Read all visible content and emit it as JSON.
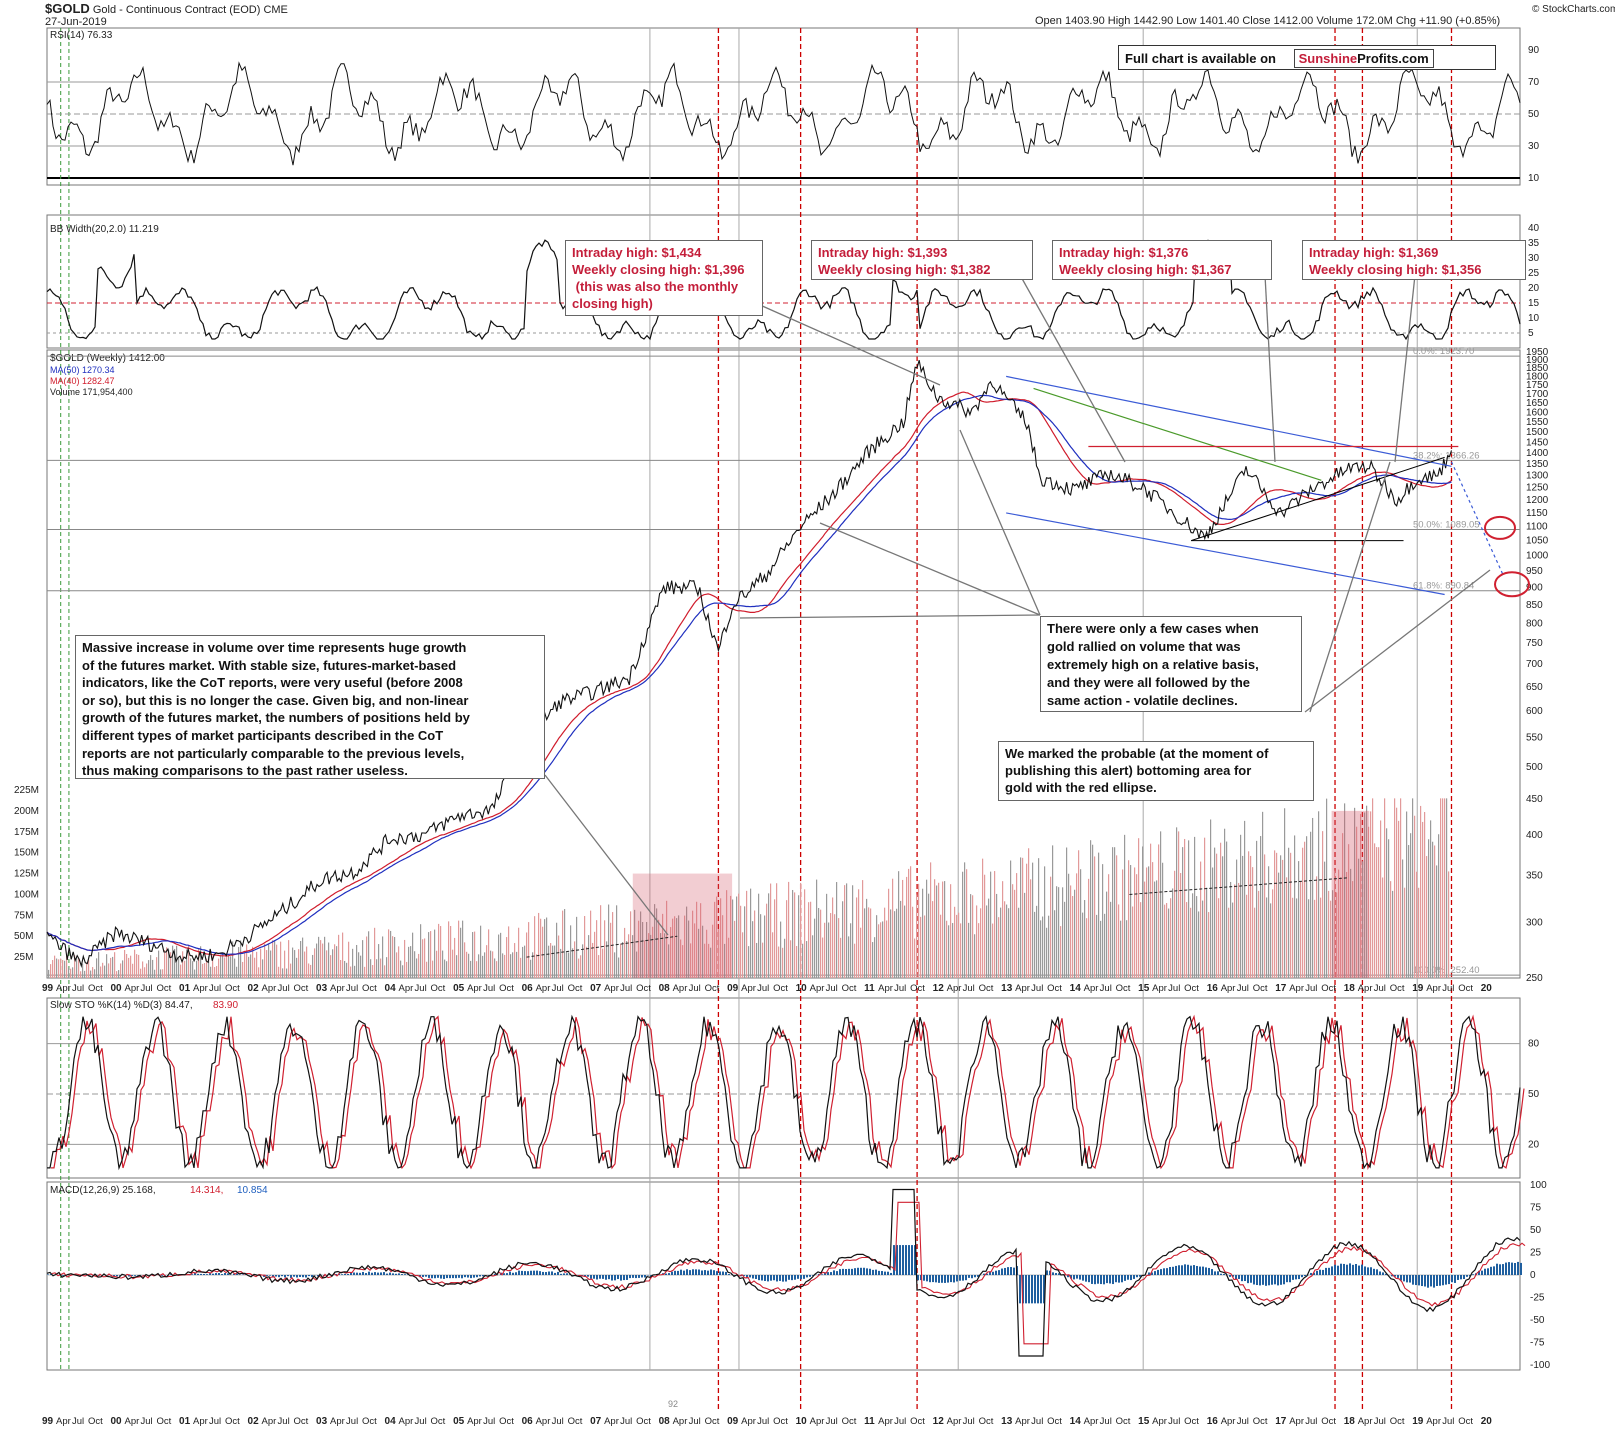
{
  "header": {
    "symbol": "$GOLD",
    "name": "Gold - Continuous Contract (EOD)",
    "exchange": "CME",
    "date": "27-Jun-2019",
    "ohlc": "Open 1403.90  High 1442.90  Low 1401.40  Close 1412.00  Volume 172.0M  Chg +11.90 (+0.85%)",
    "source": "© StockCharts.com"
  },
  "promo": {
    "text": "Full chart is available on",
    "brand_red": "Sunshine",
    "brand_black": "Profits.com"
  },
  "panels": {
    "rsi": {
      "label": "RSI(14) 76.33",
      "ticks": [
        "90",
        "70",
        "50",
        "30",
        "10"
      ]
    },
    "bbw": {
      "label": "BB Width(20,2.0) 11.219",
      "ticks": [
        "40",
        "35",
        "30",
        "25",
        "20",
        "15",
        "10",
        "5"
      ]
    },
    "price": {
      "label": "$GOLD (Weekly) 1412.00",
      "ma50": "MA(50) 1270.34",
      "ma40": "MA(40) 1282.47",
      "volume": "Volume 171,954,400",
      "ticks": [
        "1950",
        "1900",
        "1850",
        "1800",
        "1750",
        "1700",
        "1650",
        "1600",
        "1550",
        "1500",
        "1450",
        "1400",
        "1350",
        "1300",
        "1250",
        "1200",
        "1150",
        "1100",
        "1050",
        "1000",
        "950",
        "900",
        "850",
        "800",
        "750",
        "700",
        "650",
        "600",
        "550",
        "500",
        "450",
        "400",
        "350",
        "300",
        "250"
      ],
      "volume_ticks": [
        "225M",
        "200M",
        "175M",
        "150M",
        "125M",
        "100M",
        "75M",
        "50M",
        "25M"
      ],
      "fib": [
        "0.0%: 1923.70",
        "38.2%: 1366.26",
        "50.0%: 1089.05",
        "61.8%: 890.84",
        "100.0%: 252.40"
      ]
    },
    "sto": {
      "label": "Slow STO %K(14) %D(3) 84.47,",
      "d_value": "83.90",
      "ticks": [
        "80",
        "50",
        "20"
      ]
    },
    "macd": {
      "label": "MACD(12,26,9) 25.168,",
      "signal_value": "14.314,",
      "hist_value": "10.854",
      "ticks": [
        "100",
        "75",
        "50",
        "25",
        "0",
        "-25",
        "-50",
        "-75",
        "-100"
      ],
      "footnote": "92"
    }
  },
  "time_axis": [
    {
      "year": "99",
      "months": [
        "Apr",
        "Jul",
        "Oct"
      ]
    },
    {
      "year": "00",
      "months": [
        "Apr",
        "Jul",
        "Oct"
      ]
    },
    {
      "year": "01",
      "months": [
        "Apr",
        "Jul",
        "Oct"
      ]
    },
    {
      "year": "02",
      "months": [
        "Apr",
        "Jul",
        "Oct"
      ]
    },
    {
      "year": "03",
      "months": [
        "Apr",
        "Jul",
        "Oct"
      ]
    },
    {
      "year": "04",
      "months": [
        "Apr",
        "Jul",
        "Oct"
      ]
    },
    {
      "year": "05",
      "months": [
        "Apr",
        "Jul",
        "Oct"
      ]
    },
    {
      "year": "06",
      "months": [
        "Apr",
        "Jul",
        "Oct"
      ]
    },
    {
      "year": "07",
      "months": [
        "Apr",
        "Jul",
        "Oct"
      ]
    },
    {
      "year": "08",
      "months": [
        "Apr",
        "Jul",
        "Oct"
      ]
    },
    {
      "year": "09",
      "months": [
        "Apr",
        "Jul",
        "Oct"
      ]
    },
    {
      "year": "10",
      "months": [
        "Apr",
        "Jul",
        "Oct"
      ]
    },
    {
      "year": "11",
      "months": [
        "Apr",
        "Jul",
        "Oct"
      ]
    },
    {
      "year": "12",
      "months": [
        "Apr",
        "Jul",
        "Oct"
      ]
    },
    {
      "year": "13",
      "months": [
        "Apr",
        "Jul",
        "Oct"
      ]
    },
    {
      "year": "14",
      "months": [
        "Apr",
        "Jul",
        "Oct"
      ]
    },
    {
      "year": "15",
      "months": [
        "Apr",
        "Jul",
        "Oct"
      ]
    },
    {
      "year": "16",
      "months": [
        "Apr",
        "Jul",
        "Oct"
      ]
    },
    {
      "year": "17",
      "months": [
        "Apr",
        "Jul",
        "Oct"
      ]
    },
    {
      "year": "18",
      "months": [
        "Apr",
        "Jul",
        "Oct"
      ]
    },
    {
      "year": "19",
      "months": [
        "Apr",
        "Jul",
        "Oct"
      ]
    },
    {
      "year": "20",
      "months": []
    }
  ],
  "annotations": {
    "ann_2008": [
      "Intraday high: $1,434",
      "Weekly closing high: $1,396",
      " (this was also the monthly",
      "closing high)"
    ],
    "ann_2011": [
      "Intraday high: $1,393",
      "Weekly closing high: $1,382"
    ],
    "ann_2016": [
      "Intraday high: $1,376",
      "Weekly closing high: $1,367"
    ],
    "ann_2018": [
      "Intraday high: $1,369",
      "Weekly closing high: $1,356"
    ],
    "volume_text": [
      "Massive increase in volume over time represents huge growth",
      "of the futures market. With stable size, futures-market-based",
      "indicators, like the CoT reports, were very useful (before 2008",
      "or so), but this is no longer the case. Given big, and non-linear",
      "growth of the futures market, the numbers of positions held by",
      "different types of market participants described in the CoT",
      "reports are not particularly comparable to the previous levels,",
      "thus making comparisons to the past rather useless."
    ],
    "rally_text": [
      "There were only a few cases when",
      "gold rallied on volume that was",
      "extremely high on a relative basis,",
      "and they were all followed by the",
      "same action - volatile declines."
    ],
    "ellipse_text": [
      "We marked the probable (at the moment of",
      "publishing this alert) bottoming area for",
      "gold with the red ellipse."
    ]
  },
  "chart_data": {
    "type": "line",
    "title": "$GOLD Gold - Continuous Contract (EOD) CME",
    "x": [
      1999.0,
      1999.5,
      2000.0,
      2000.5,
      2001.0,
      2001.5,
      2002.0,
      2002.5,
      2003.0,
      2003.5,
      2004.0,
      2004.5,
      2005.0,
      2005.5,
      2006.0,
      2006.5,
      2007.0,
      2007.5,
      2008.0,
      2008.5,
      2008.8,
      2009.0,
      2009.5,
      2010.0,
      2010.5,
      2011.0,
      2011.5,
      2011.7,
      2012.0,
      2012.5,
      2012.8,
      2013.0,
      2013.3,
      2013.5,
      2014.0,
      2014.5,
      2015.0,
      2015.5,
      2015.9,
      2016.0,
      2016.5,
      2017.0,
      2017.5,
      2018.0,
      2018.3,
      2018.7,
      2019.0,
      2019.3,
      2019.5
    ],
    "series": [
      {
        "name": "$GOLD (Weekly)",
        "values": [
          287,
          262,
          290,
          280,
          268,
          270,
          290,
          315,
          345,
          355,
          395,
          400,
          425,
          435,
          550,
          620,
          640,
          670,
          900,
          900,
          730,
          850,
          940,
          1100,
          1230,
          1410,
          1550,
          1880,
          1680,
          1600,
          1780,
          1670,
          1550,
          1290,
          1240,
          1310,
          1250,
          1140,
          1060,
          1100,
          1330,
          1150,
          1250,
          1330,
          1340,
          1200,
          1290,
          1300,
          1412
        ]
      }
    ],
    "annotations": [
      "Intraday high: $1,434",
      "Weekly closing high: $1,396",
      "Intraday high: $1,393",
      "Weekly closing high: $1,382",
      "Intraday high: $1,376",
      "Weekly closing high: $1,367",
      "Intraday high: $1,369",
      "Weekly closing high: $1,356"
    ],
    "ylim": [
      250,
      1950
    ],
    "yscale": "log",
    "xlim": [
      1999.0,
      2020.5
    ],
    "grid": true,
    "legend": "top-left"
  },
  "colors": {
    "price": "#111111",
    "ma50": "#1f2fbf",
    "ma40": "#d01c2c",
    "volume": "#9a9a9a",
    "volume_up": "#e29a9a",
    "vline": "#cc0000",
    "hist": "#1f5f9f"
  }
}
